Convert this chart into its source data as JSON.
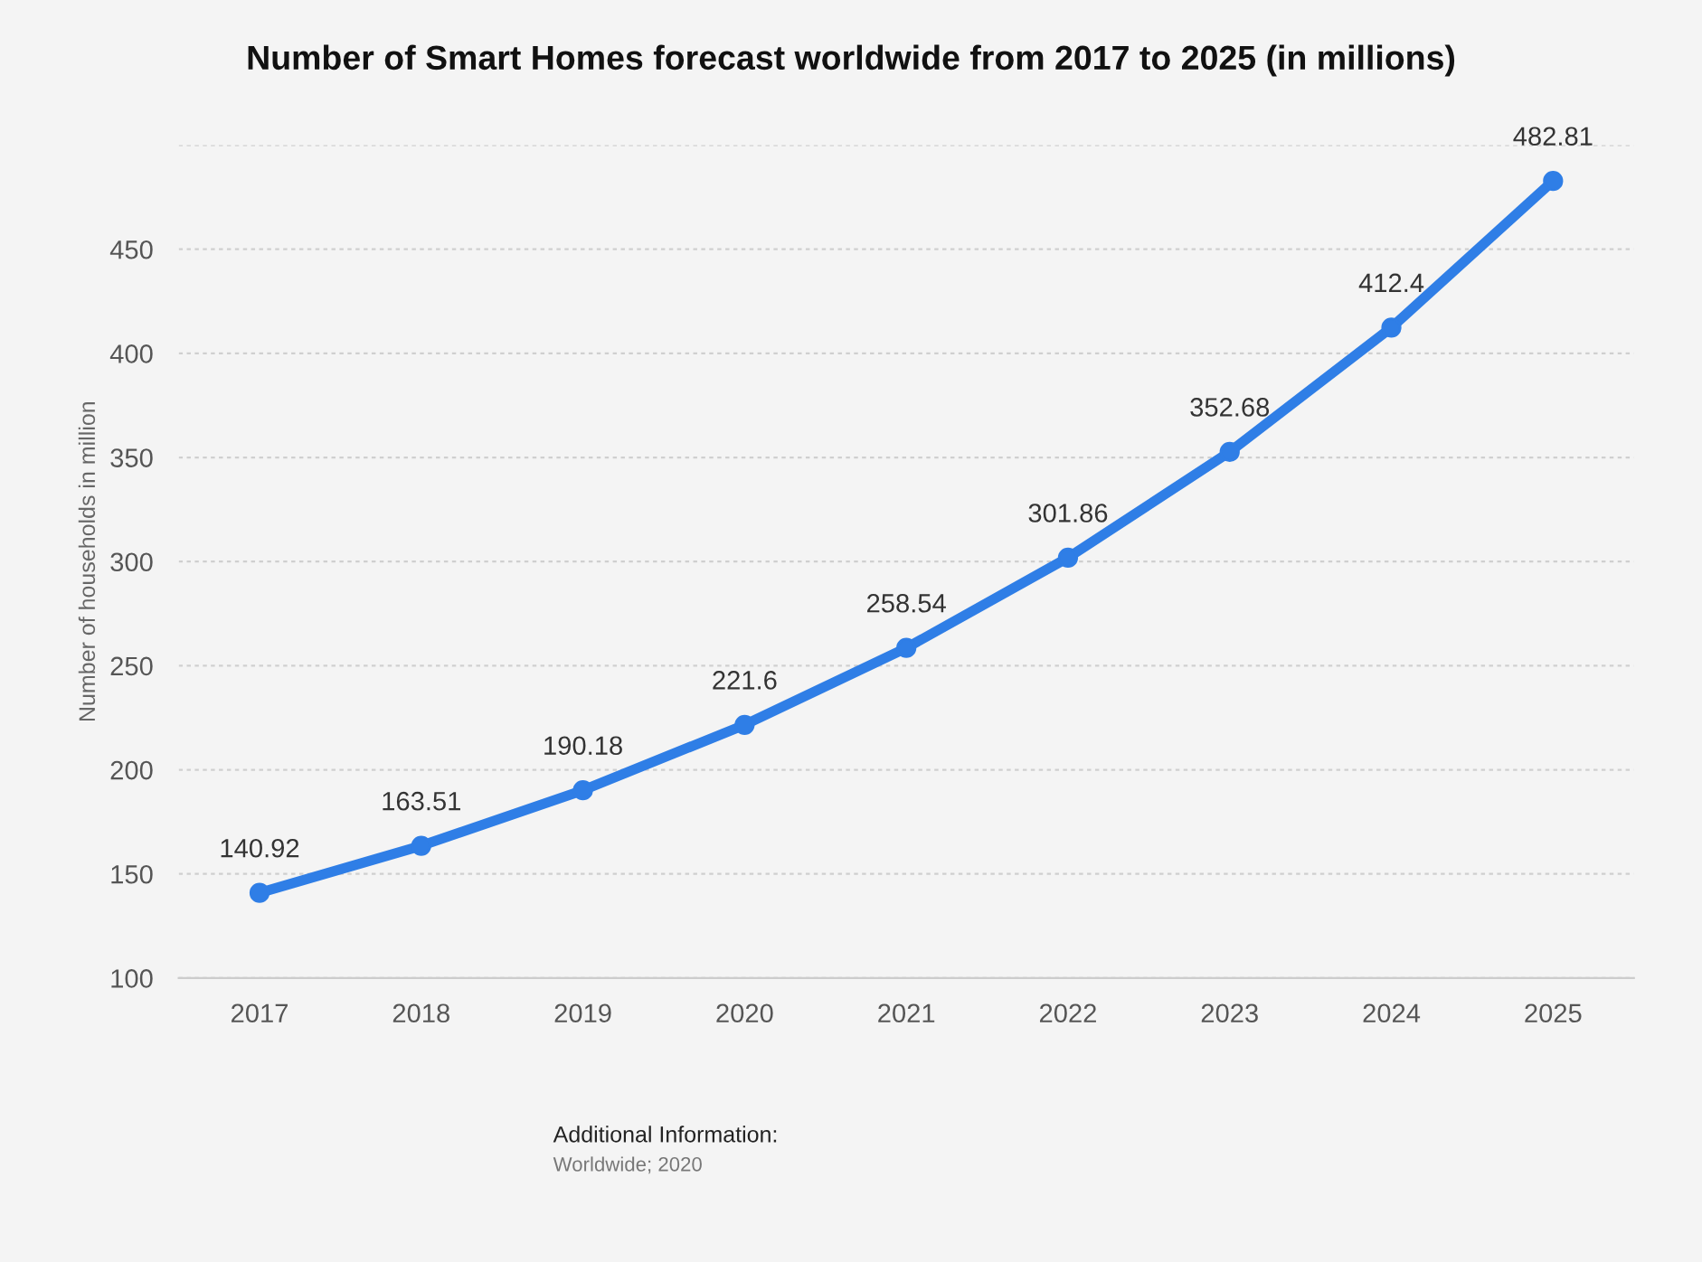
{
  "chart_data": {
    "type": "line",
    "title": "Number of Smart Homes forecast worldwide from 2017 to 2025 (in millions)",
    "ylabel": "Number of households in million",
    "categories": [
      "2017",
      "2018",
      "2019",
      "2020",
      "2021",
      "2022",
      "2023",
      "2024",
      "2025"
    ],
    "series": [
      {
        "color": "#2f7ee6",
        "values": [
          140.92,
          163.51,
          190.18,
          221.6,
          258.54,
          301.86,
          352.68,
          412.4,
          482.81
        ]
      }
    ],
    "ylim": [
      100,
      500
    ],
    "yticks": [
      100,
      150,
      200,
      250,
      300,
      350,
      400,
      450,
      {
        "value": 500,
        "label": null
      }
    ],
    "grid": "y",
    "marker": "circle",
    "line_style": "solid",
    "data_labels": true,
    "legend": false,
    "annotations": [
      "Additional Information:",
      "Worldwide; 2020"
    ]
  }
}
